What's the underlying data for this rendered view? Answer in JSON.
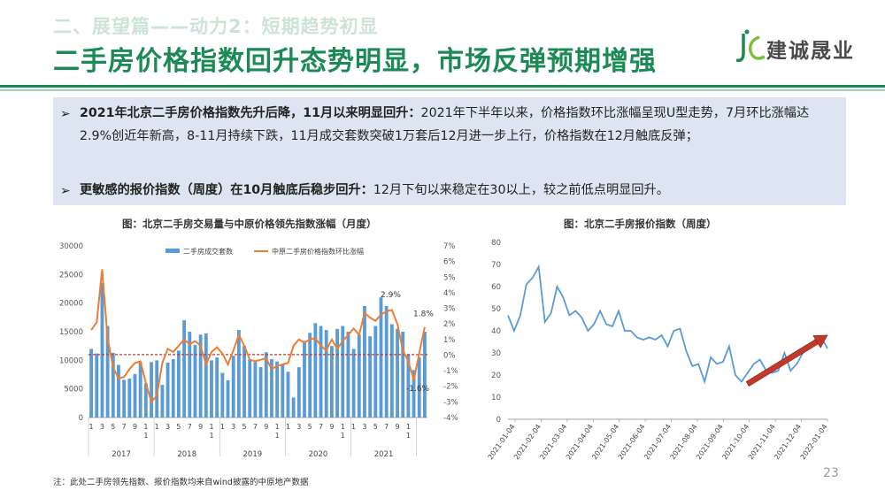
{
  "header": {
    "kicker": "二、展望篇——动力2：短期趋势初显",
    "title": "二手房价格指数回升态势明显，市场反弹预期增强",
    "logo_text": "建诚晟业"
  },
  "summary": {
    "bullets": [
      {
        "marker": "➢",
        "bold": "2021年北京二手房价格指数先升后降，11月以来明显回升：",
        "text": "2021年下半年以来，价格指数环比涨幅呈现U型走势，7月环比涨幅达2.9%创近年新高，8-11月持续下跌，11月成交套数突破1万套后12月进一步上行，价格指数在12月触底反弹；"
      },
      {
        "marker": "➢",
        "bold": "更敏感的报价指数（周度）在10月触底后稳步回升：",
        "text": "12月下旬以来稳定在30以上，较之前低点明显回升。"
      }
    ]
  },
  "footer": {
    "note": "注：此处二手房领先指数、报价指数均来自wind披露的中原地产数据",
    "page": "23"
  },
  "colors": {
    "bar": "#5b9bd5",
    "line": "#ed7d31",
    "ref_line": "#c0392b",
    "weekly_line": "#5b9bd5",
    "arrow": "#c0392b"
  },
  "chart_data": [
    {
      "type": "bar",
      "title": "图：北京二手房交易量与中原价格领先指数涨幅（月度）",
      "x_tick_labels": [
        "1",
        "3",
        "5",
        "7",
        "9",
        "1\n1",
        "1",
        "3",
        "5",
        "7",
        "9",
        "1\n1",
        "1",
        "3",
        "5",
        "7",
        "9",
        "1\n1",
        "1",
        "3",
        "5",
        "7",
        "9",
        "1\n1",
        "1",
        "3",
        "5",
        "7",
        "9",
        "1\n1"
      ],
      "year_labels": [
        "2017",
        "2018",
        "2019",
        "2020",
        "2021"
      ],
      "y_left": {
        "ticks": [
          "0",
          "5000",
          "10000",
          "15000",
          "20000",
          "25000",
          "30000"
        ],
        "lim": [
          0,
          30000
        ]
      },
      "y_right": {
        "ticks": [
          "-4%",
          "-3%",
          "-2%",
          "-1%",
          "0%",
          "1%",
          "2%",
          "3%",
          "4%",
          "5%",
          "6%",
          "7%"
        ],
        "lim": [
          -4,
          7
        ]
      },
      "legend": [
        "二手房成交套数",
        "中原二手房价格指数环比涨幅"
      ],
      "annotations": [
        "2.9%",
        "1.8%",
        "-1.6%"
      ],
      "series": [
        {
          "name": "二手房成交套数",
          "axis": "left",
          "values": [
            12000,
            11200,
            23500,
            16000,
            11300,
            9200,
            6600,
            6800,
            7600,
            9700,
            6000,
            9700,
            10000,
            5700,
            9600,
            10200,
            11700,
            17000,
            15000,
            12700,
            14500,
            14700,
            10000,
            10500,
            7800,
            6500,
            10800,
            15300,
            12500,
            10200,
            9700,
            8800,
            11400,
            10200,
            9800,
            9400,
            8000,
            3500,
            8800,
            13400,
            14800,
            16500,
            16000,
            15300,
            12500,
            15500,
            16000,
            15000,
            12000,
            14500,
            19500,
            14200,
            16000,
            21000,
            19500,
            16300,
            15500,
            15000,
            11000,
            8300,
            10500,
            15000
          ]
        },
        {
          "name": "中原二手房价格指数环比涨幅",
          "axis": "right",
          "values": [
            1.6,
            2.1,
            5.5,
            1.1,
            -0.8,
            -1.5,
            -1.4,
            -0.9,
            -0.5,
            -0.4,
            -1.8,
            -3.0,
            -2.6,
            -0.5,
            0.4,
            0.2,
            0.6,
            1.0,
            0.7,
            0.9,
            0.6,
            -0.6,
            0.2,
            0.5,
            0.1,
            -0.6,
            0.3,
            1.3,
            0.6,
            -0.3,
            -0.4,
            -0.3,
            -0.2,
            -0.9,
            -0.7,
            -0.6,
            -0.5,
            0.6,
            1.0,
            0.8,
            1.0,
            1.1,
            0.6,
            0.3,
            1.0,
            0.4,
            0.9,
            1.3,
            1.7,
            1.3,
            2.7,
            2.4,
            2.2,
            2.6,
            2.8,
            2.9,
            2.0,
            0.3,
            -0.4,
            -1.6,
            0.1,
            1.8
          ]
        }
      ],
      "reference_line": {
        "axis": "left",
        "value": 11000
      }
    },
    {
      "type": "line",
      "title": "图：北京二手房报价指数（周度）",
      "y_ticks": [
        "0",
        "10",
        "20",
        "30",
        "40",
        "50",
        "60",
        "70",
        "80"
      ],
      "ylim": [
        0,
        80
      ],
      "x_tick_labels": [
        "2021-01-04",
        "2021-02-04",
        "2021-03-04",
        "2021-04-04",
        "2021-05-04",
        "2021-06-04",
        "2021-07-04",
        "2021-08-04",
        "2021-09-04",
        "2021-10-04",
        "2021-11-04",
        "2021-12-04",
        "2022-01-04"
      ],
      "series": [
        {
          "name": "报价指数",
          "values": [
            47,
            40,
            47,
            61,
            64,
            69,
            44,
            48,
            60,
            55,
            47,
            49,
            46,
            40,
            43,
            49,
            43,
            42,
            49,
            40,
            40,
            37,
            36,
            37,
            36,
            38,
            33,
            40,
            41,
            31,
            24,
            25,
            17,
            28,
            25,
            26,
            33,
            20,
            17,
            21,
            25,
            27,
            22,
            21,
            22,
            30,
            22,
            25,
            30,
            32,
            36,
            37,
            32
          ]
        }
      ],
      "trend_arrow": {
        "from": {
          "index": 39,
          "value": 16
        },
        "to": {
          "index": 52,
          "value": 38
        }
      }
    }
  ]
}
